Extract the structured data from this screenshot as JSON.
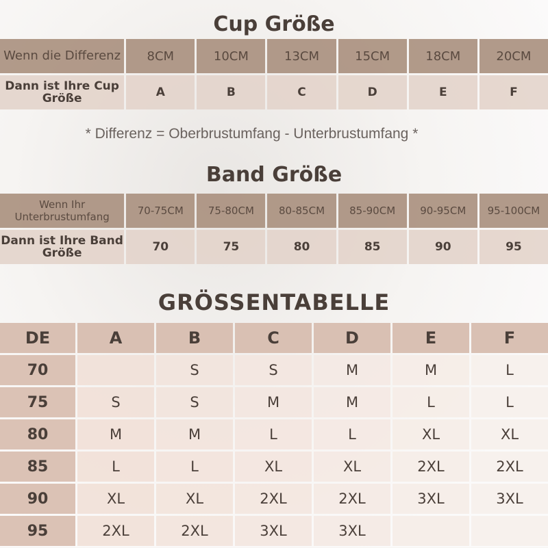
{
  "cup": {
    "title": "Cup Größe",
    "row1_label": "Wenn die Differenz",
    "row2_label": "Dann ist Ihre Cup Größe",
    "columns": [
      {
        "diff": "8CM",
        "cup": "A"
      },
      {
        "diff": "10CM",
        "cup": "B"
      },
      {
        "diff": "13CM",
        "cup": "C"
      },
      {
        "diff": "15CM",
        "cup": "D"
      },
      {
        "diff": "18CM",
        "cup": "E"
      },
      {
        "diff": "20CM",
        "cup": "F"
      }
    ]
  },
  "note": "* Differenz = Oberbrustumfang - Unterbrustumfang *",
  "band": {
    "title": "Band Größe",
    "row1_label": "Wenn Ihr Unterbrustumfang",
    "row2_label": "Dann ist Ihre Band Größe",
    "columns": [
      {
        "range": "70-75CM",
        "band": "70"
      },
      {
        "range": "75-80CM",
        "band": "75"
      },
      {
        "range": "80-85CM",
        "band": "80"
      },
      {
        "range": "85-90CM",
        "band": "85"
      },
      {
        "range": "90-95CM",
        "band": "90"
      },
      {
        "range": "95-100CM",
        "band": "95"
      }
    ]
  },
  "size_table": {
    "title": "GRÖSSENTABELLE",
    "corner": "DE",
    "headers": [
      "A",
      "B",
      "C",
      "D",
      "E",
      "F"
    ],
    "rows": [
      {
        "band": "70",
        "sizes": [
          "",
          "S",
          "S",
          "M",
          "M",
          "L"
        ]
      },
      {
        "band": "75",
        "sizes": [
          "S",
          "S",
          "M",
          "M",
          "L",
          "L"
        ]
      },
      {
        "band": "80",
        "sizes": [
          "M",
          "M",
          "L",
          "L",
          "XL",
          "XL"
        ]
      },
      {
        "band": "85",
        "sizes": [
          "L",
          "L",
          "XL",
          "XL",
          "2XL",
          "2XL"
        ]
      },
      {
        "band": "90",
        "sizes": [
          "XL",
          "XL",
          "2XL",
          "2XL",
          "3XL",
          "3XL"
        ]
      },
      {
        "band": "95",
        "sizes": [
          "2XL",
          "2XL",
          "3XL",
          "3XL",
          "",
          ""
        ]
      }
    ]
  },
  "colors": {
    "header_dark": "#aa9180",
    "row_light": "#e2d3ca",
    "big_header": "#d9c0b3",
    "big_cell": "#f1e0d7",
    "text": "#4a3f39"
  }
}
